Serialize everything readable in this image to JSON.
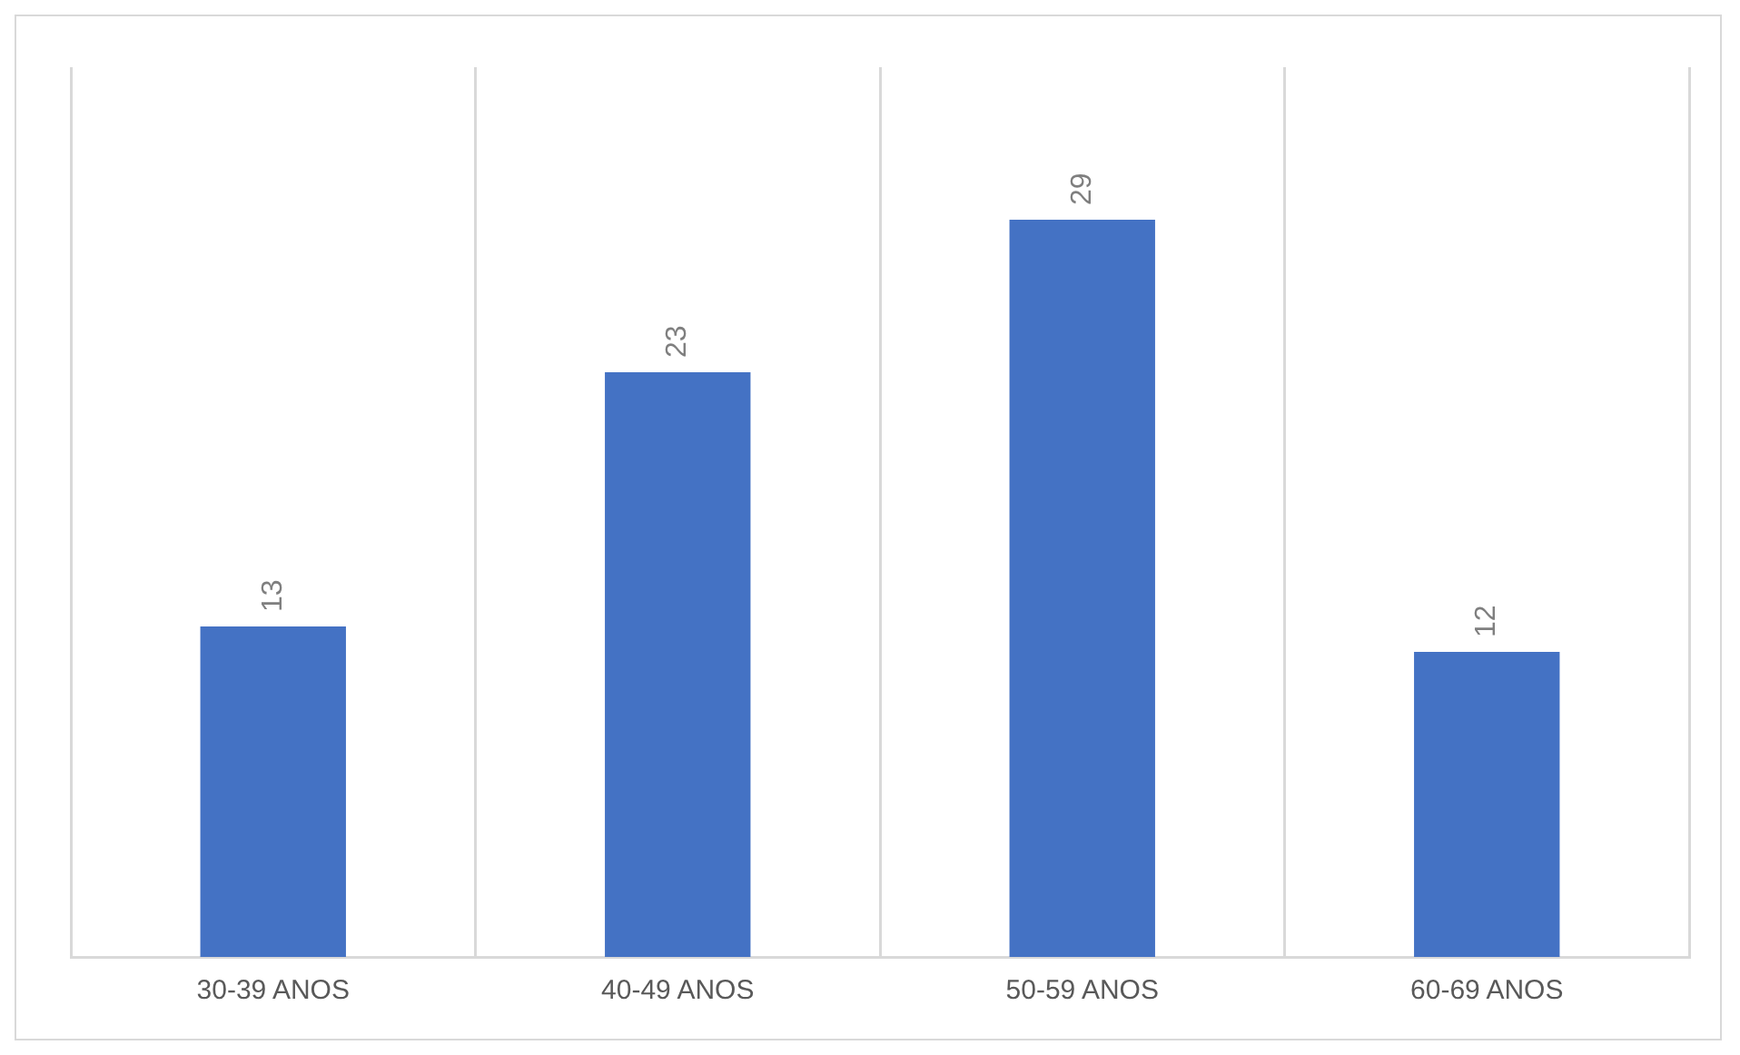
{
  "chart_data": {
    "type": "bar",
    "categories": [
      "30-39 ANOS",
      "40-49 ANOS",
      "50-59 ANOS",
      "60-69 ANOS"
    ],
    "values": [
      13,
      23,
      29,
      12
    ],
    "color": "#4472c4",
    "data_labels": true,
    "grid": "x",
    "legend": false,
    "tick_labels": "x"
  }
}
